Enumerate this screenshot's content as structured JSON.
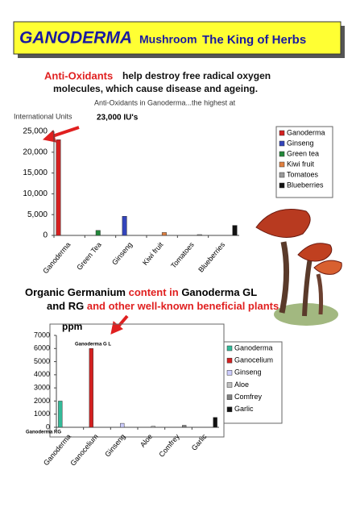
{
  "header": {
    "title": "GANODERMA",
    "subtitle1": "Mushroom",
    "subtitle2": "The King of Herbs"
  },
  "intro": {
    "highlight": "Anti-Oxidants",
    "line1": "help destroy free radical oxygen",
    "line2": "molecules, which cause disease and ageing."
  },
  "heading2": {
    "line1": [
      {
        "text": "Organic Germanium ",
        "color": "#000000"
      },
      {
        "text": "content in ",
        "color": "#e02020"
      },
      {
        "text": "Ganoderma GL",
        "color": "#000000"
      }
    ],
    "line2": [
      {
        "text": "and RG ",
        "color": "#000000"
      },
      {
        "text": "and other well-known beneficial plants",
        "color": "#e02020"
      }
    ]
  },
  "chart_data": [
    {
      "type": "bar",
      "title": "Anti-Oxidants in Ganoderma...the highest at",
      "annotation": "23,000 IU's",
      "y_label": "International Units",
      "categories": [
        "Ganoderma",
        "Green Tea",
        "Ginseng",
        "Kiwi fruit",
        "Tomatoes",
        "Blueberries"
      ],
      "series": [
        {
          "name": "Ganoderma",
          "color": "#d42020",
          "values": [
            23000,
            null,
            null,
            null,
            null,
            null
          ]
        },
        {
          "name": "Ginseng",
          "color": "#3344bb",
          "values": [
            null,
            null,
            4600,
            null,
            null,
            null
          ]
        },
        {
          "name": "Green tea",
          "color": "#22883a",
          "values": [
            null,
            1200,
            null,
            null,
            null,
            null
          ]
        },
        {
          "name": "Kiwi fruit",
          "color": "#e08040",
          "values": [
            null,
            null,
            null,
            700,
            null,
            null
          ]
        },
        {
          "name": "Tomatoes",
          "color": "#999999",
          "values": [
            null,
            null,
            null,
            null,
            200,
            null
          ]
        },
        {
          "name": "Blueberries",
          "color": "#111111",
          "values": [
            null,
            null,
            null,
            null,
            null,
            2400
          ]
        }
      ],
      "ylim": [
        0,
        25000
      ],
      "yticks": [
        0,
        {
          "value": 5000,
          "label": "5,000"
        },
        {
          "value": 10000,
          "label": "10,000"
        },
        {
          "value": 15000,
          "label": "15,000"
        },
        {
          "value": 20000,
          "label": "20,000"
        },
        {
          "value": 25000,
          "label": "25,000"
        }
      ],
      "legend": "right"
    },
    {
      "type": "bar",
      "y_label": "ppm",
      "annotations": [
        "Ganoderma G L",
        "Ganoderma RG"
      ],
      "categories": [
        "Ganoderma",
        "Ganocelium",
        "Ginseng",
        "Aloe",
        "Comfrey",
        "Garlic"
      ],
      "series": [
        {
          "name": "Ganoderma",
          "color": "#33bb99",
          "values": [
            2000,
            null,
            null,
            null,
            null,
            null
          ]
        },
        {
          "name": "Ganocelium",
          "color": "#d42020",
          "values": [
            null,
            6000,
            null,
            null,
            null,
            null
          ]
        },
        {
          "name": "Ginseng",
          "color": "#ccccff",
          "values": [
            null,
            null,
            300,
            null,
            null,
            null
          ]
        },
        {
          "name": "Aloe",
          "color": "#c0c0c0",
          "values": [
            null,
            null,
            null,
            80,
            null,
            null
          ]
        },
        {
          "name": "Comfrey",
          "color": "#808080",
          "values": [
            null,
            null,
            null,
            null,
            150,
            null
          ]
        },
        {
          "name": "Garlic",
          "color": "#111111",
          "values": [
            null,
            null,
            null,
            null,
            null,
            750
          ]
        }
      ],
      "ylim": [
        0,
        7000
      ],
      "yticks": [
        0,
        1000,
        2000,
        3000,
        4000,
        5000,
        6000,
        7000
      ],
      "legend": "right"
    }
  ]
}
